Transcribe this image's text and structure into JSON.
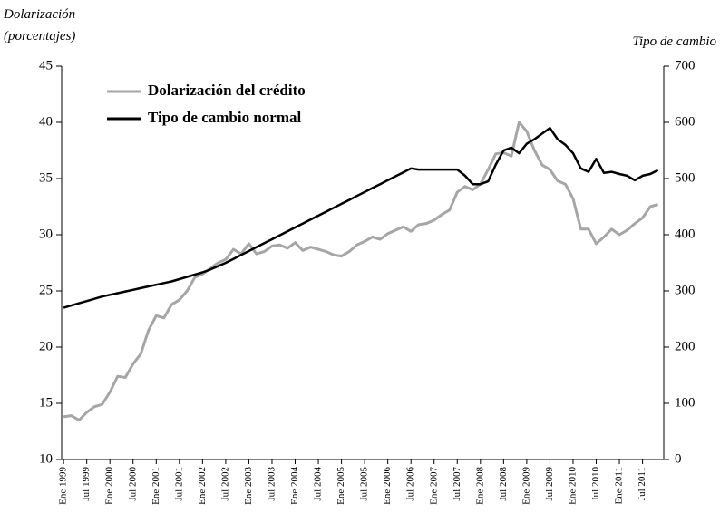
{
  "chart_data": {
    "type": "line",
    "y_label": [
      "Dolarización",
      "(porcentajes)"
    ],
    "y2_label": "Tipo de cambio",
    "categories": [
      "Ene 1999",
      null,
      null,
      "Jul 1999",
      null,
      null,
      "Ene 2000",
      null,
      null,
      "Jul 2000",
      null,
      null,
      "Ene 2001",
      null,
      null,
      "Jul 2001",
      null,
      null,
      "Ene 2002",
      null,
      null,
      "Jul 2002",
      null,
      null,
      "Ene 2003",
      null,
      null,
      "Jul 2003",
      null,
      null,
      "Ene 2004",
      null,
      null,
      "Jul 2004",
      null,
      null,
      "Ene 2005",
      null,
      null,
      "Jul 2005",
      null,
      null,
      "Ene 2006",
      null,
      null,
      "Jul 2006",
      null,
      null,
      "Ene 2007",
      null,
      null,
      "Jul 2007",
      null,
      null,
      "Ene 2008",
      null,
      null,
      "Jul 2008",
      null,
      null,
      "Ene 2009",
      null,
      null,
      "Jul 2009",
      null,
      null,
      "Ene 2010",
      null,
      null,
      "Jul 2010",
      null,
      null,
      "Ene 2011",
      null,
      null,
      "Jul 2011",
      null,
      null
    ],
    "series": [
      {
        "name": "Dolarización del crédito",
        "color": "#a6a6a6",
        "axis": "y",
        "values": [
          13.8,
          13.9,
          13.5,
          14.2,
          14.7,
          14.9,
          16,
          17.4,
          17.3,
          18.5,
          19.4,
          21.5,
          22.8,
          22.6,
          23.8,
          24.2,
          25,
          26.2,
          26.5,
          27.0,
          27.5,
          27.8,
          28.7,
          28.3,
          29.2,
          28.3,
          28.5,
          29.0,
          29.1,
          28.8,
          29.3,
          28.6,
          28.9,
          28.7,
          28.5,
          28.2,
          28.1,
          28.5,
          29.1,
          29.4,
          29.8,
          29.6,
          30.1,
          30.4,
          30.7,
          30.3,
          30.9,
          31.0,
          31.3,
          31.8,
          32.2,
          33.8,
          34.3,
          34.0,
          34.5,
          35.8,
          37.2,
          37.3,
          37.0,
          40.0,
          39.2,
          37.5,
          36.2,
          35.8,
          34.8,
          34.5,
          33.2,
          30.5,
          30.5,
          29.2,
          29.8,
          30.5,
          30.0,
          30.4,
          31.0,
          31.5,
          32.5,
          32.7
        ]
      },
      {
        "name": "Tipo de cambio normal",
        "color": "#000000",
        "axis": "y2",
        "values": [
          270,
          274,
          278,
          282,
          286,
          290,
          293,
          296,
          299,
          302,
          305,
          308,
          311,
          314,
          317,
          321,
          325,
          329,
          333,
          338,
          344,
          350,
          357,
          364,
          371,
          378,
          385,
          392,
          399,
          406,
          413,
          420,
          427,
          434,
          441,
          448,
          455,
          462,
          469,
          476,
          483,
          490,
          497,
          504,
          511,
          518,
          516,
          516,
          516,
          516,
          516,
          516,
          505,
          490,
          490,
          495,
          525,
          550,
          555,
          545,
          562,
          570,
          580,
          590,
          570,
          560,
          545,
          518,
          512,
          535,
          510,
          512,
          508,
          505,
          497,
          505,
          508,
          515
        ]
      }
    ],
    "ylim": [
      10,
      45
    ],
    "yticks": [
      10,
      15,
      20,
      25,
      30,
      35,
      40,
      45
    ],
    "y2lim": [
      0,
      700
    ],
    "y2ticks": [
      0,
      100,
      200,
      300,
      400,
      500,
      600,
      700
    ],
    "grid": false,
    "legend": "upper left"
  }
}
